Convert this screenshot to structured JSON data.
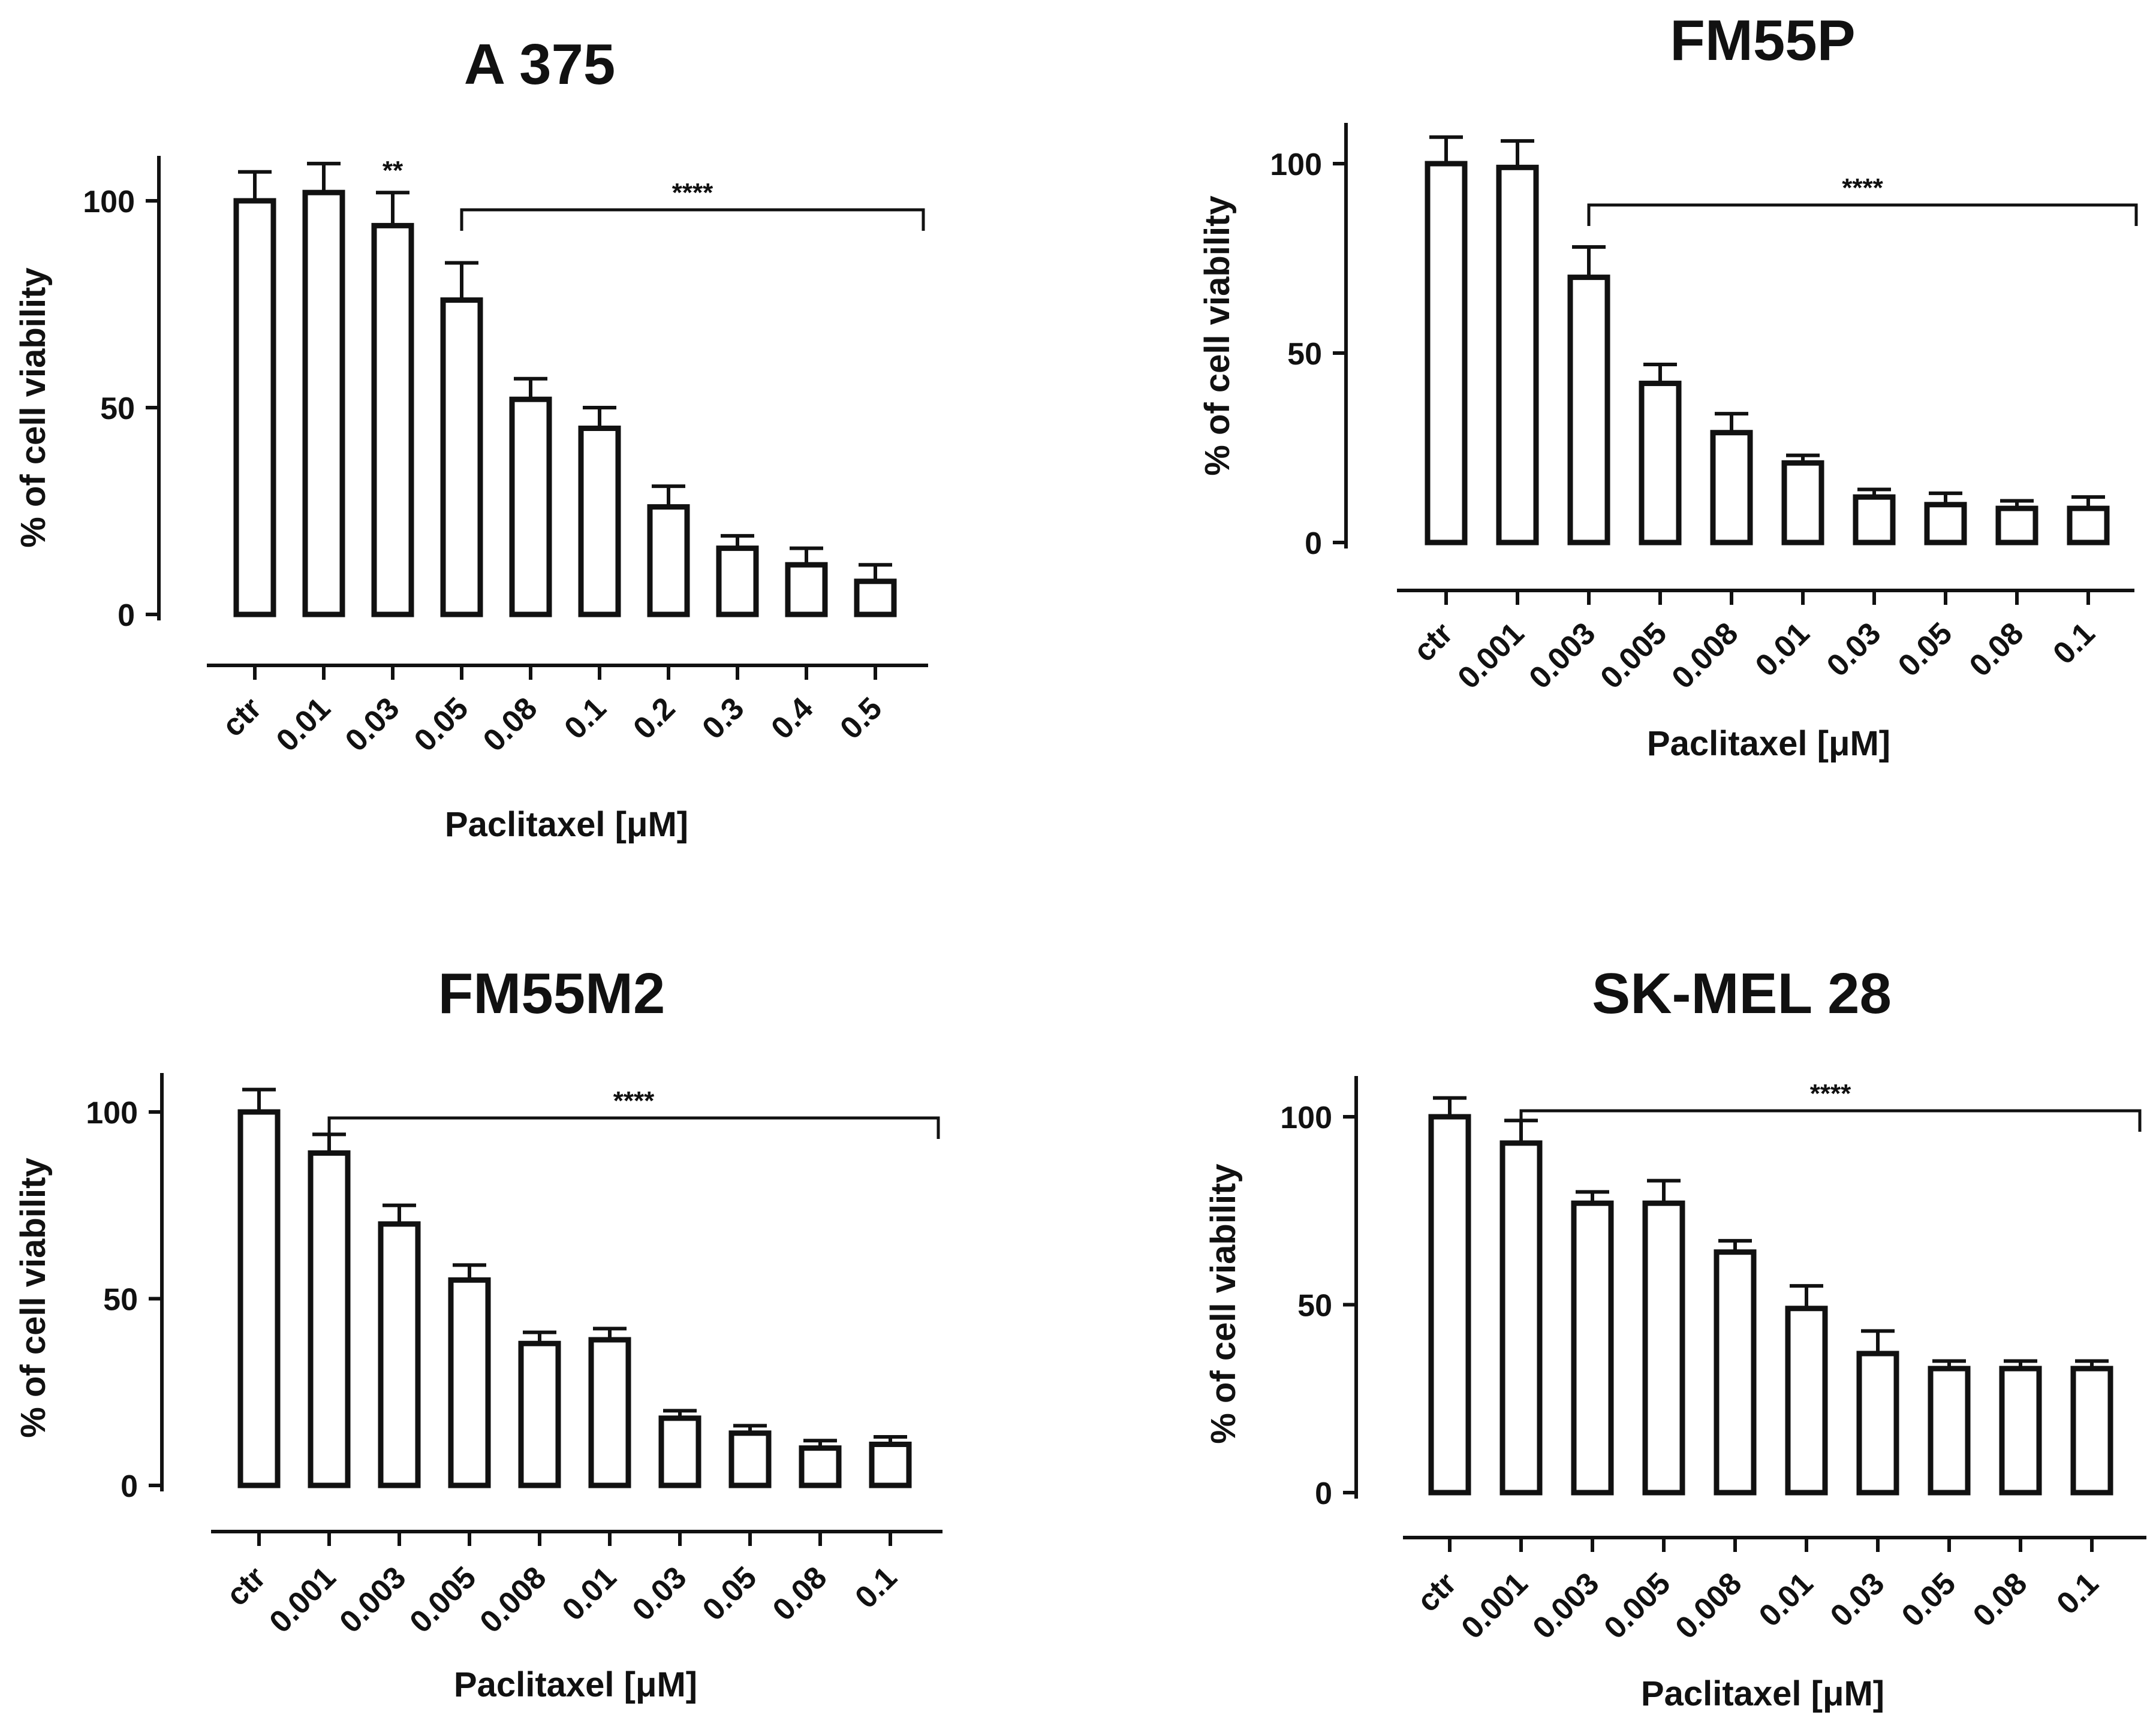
{
  "chart_data": [
    {
      "type": "bar",
      "title": "A 375",
      "xlabel": "Paclitaxel [μM]",
      "ylabel": "% of cell viability",
      "ylim": [
        0,
        110
      ],
      "yticks": [
        0,
        50,
        100
      ],
      "categories": [
        "ctr",
        "0.01",
        "0.03",
        "0.05",
        "0.08",
        "0.1",
        "0.2",
        "0.3",
        "0.4",
        "0.5"
      ],
      "values": [
        100,
        102,
        94,
        76,
        52,
        45,
        26,
        16,
        12,
        8
      ],
      "errors": [
        7,
        7,
        8,
        9,
        5,
        5,
        5,
        3,
        4,
        4
      ],
      "annotations": [
        {
          "text": "**",
          "category_index": 2
        },
        {
          "text": "****",
          "from_index": 3,
          "to_index": 9
        }
      ]
    },
    {
      "type": "bar",
      "title": "FM55P",
      "xlabel": "Paclitaxel [μM]",
      "ylabel": "% of cell viability",
      "ylim": [
        0,
        110
      ],
      "yticks": [
        0,
        50,
        100
      ],
      "categories": [
        "ctr",
        "0.001",
        "0.003",
        "0.005",
        "0.008",
        "0.01",
        "0.03",
        "0.05",
        "0.08",
        "0.1"
      ],
      "values": [
        100,
        99,
        70,
        42,
        29,
        21,
        12,
        10,
        9,
        9
      ],
      "errors": [
        7,
        7,
        8,
        5,
        5,
        2,
        2,
        3,
        2,
        3
      ],
      "annotations": [
        {
          "text": "****",
          "from_index": 2,
          "to_index": 9
        }
      ]
    },
    {
      "type": "bar",
      "title": "FM55M2",
      "xlabel": "Paclitaxel [μM]",
      "ylabel": "% of cell viability",
      "ylim": [
        0,
        110
      ],
      "yticks": [
        0,
        50,
        100
      ],
      "categories": [
        "ctr",
        "0.001",
        "0.003",
        "0.005",
        "0.008",
        "0.01",
        "0.03",
        "0.05",
        "0.08",
        "0.1"
      ],
      "values": [
        100,
        89,
        70,
        55,
        38,
        39,
        18,
        14,
        10,
        11
      ],
      "errors": [
        6,
        5,
        5,
        4,
        3,
        3,
        2,
        2,
        2,
        2
      ],
      "annotations": [
        {
          "text": "****",
          "from_index": 1,
          "to_index": 9
        }
      ]
    },
    {
      "type": "bar",
      "title": "SK-MEL 28",
      "xlabel": "Paclitaxel [μM]",
      "ylabel": "% of cell viability",
      "ylim": [
        0,
        110
      ],
      "yticks": [
        0,
        50,
        100
      ],
      "categories": [
        "ctr",
        "0.001",
        "0.003",
        "0.005",
        "0.008",
        "0.01",
        "0.03",
        "0.05",
        "0.08",
        "0.1"
      ],
      "values": [
        100,
        93,
        77,
        77,
        64,
        49,
        37,
        33,
        33,
        33
      ],
      "errors": [
        5,
        6,
        3,
        6,
        3,
        6,
        6,
        2,
        2,
        2
      ],
      "annotations": [
        {
          "text": "****",
          "from_index": 1,
          "to_index": 9
        }
      ]
    }
  ]
}
